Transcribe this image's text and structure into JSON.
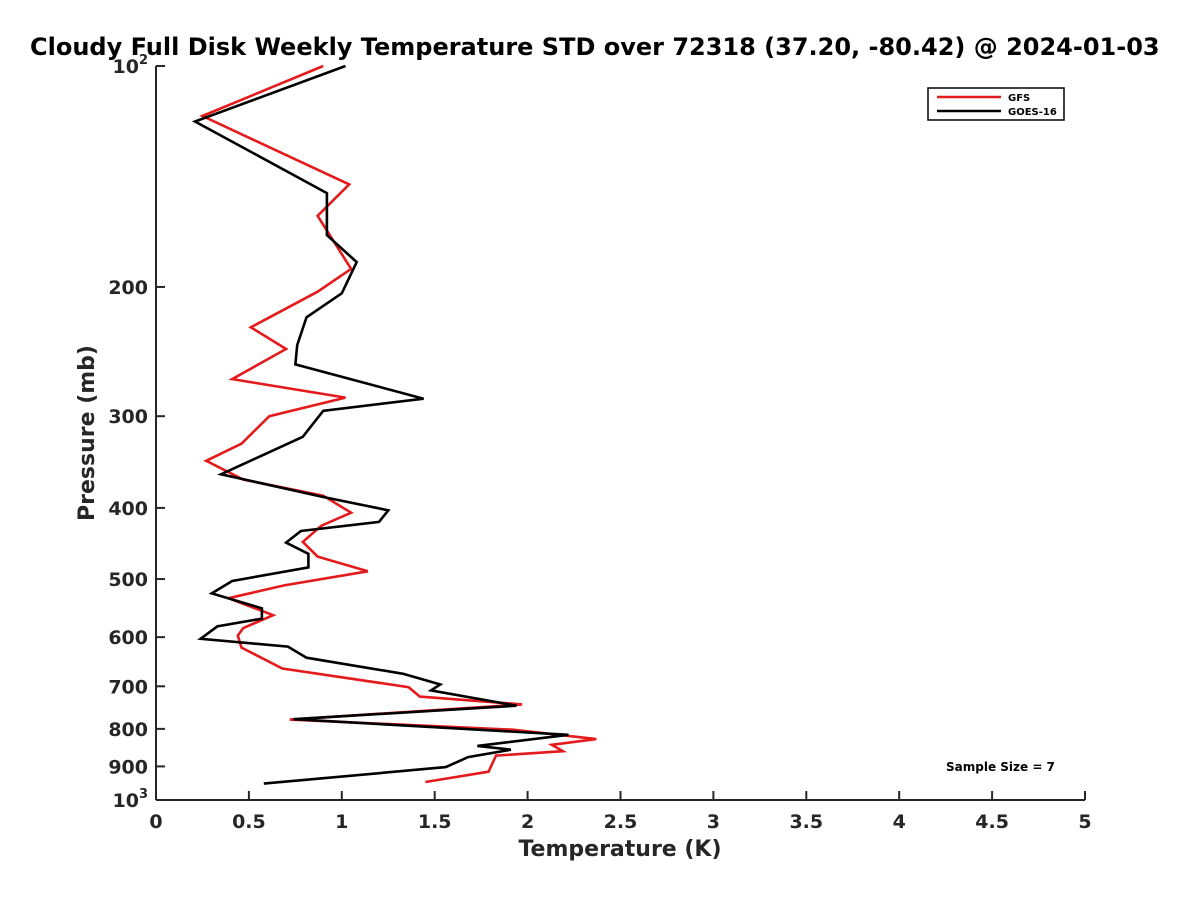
{
  "chart_data": {
    "type": "line",
    "title": "Cloudy Full Disk Weekly Temperature STD over 72318 (37.20, -80.42) @ 2024-01-03",
    "xlabel": "Temperature (K)",
    "ylabel": "Pressure (mb)",
    "xlim": [
      0,
      5
    ],
    "ylim": [
      1000,
      100
    ],
    "y_scale": "log",
    "y_reversed": true,
    "x_ticks": [
      0,
      0.5,
      1,
      1.5,
      2,
      2.5,
      3,
      3.5,
      4,
      4.5,
      5
    ],
    "x_tick_labels": [
      "0",
      "0.5",
      "1",
      "1.5",
      "2",
      "2.5",
      "3",
      "3.5",
      "4",
      "4.5",
      "5"
    ],
    "y_ticks": [
      100,
      200,
      300,
      400,
      500,
      600,
      700,
      800,
      900,
      1000
    ],
    "y_tick_labels": [
      {
        "base": "10",
        "exp": "2"
      },
      {
        "base": "200",
        "exp": ""
      },
      {
        "base": "300",
        "exp": ""
      },
      {
        "base": "400",
        "exp": ""
      },
      {
        "base": "500",
        "exp": ""
      },
      {
        "base": "600",
        "exp": ""
      },
      {
        "base": "700",
        "exp": ""
      },
      {
        "base": "800",
        "exp": ""
      },
      {
        "base": "900",
        "exp": ""
      },
      {
        "base": "10",
        "exp": "3"
      }
    ],
    "grid": false,
    "legend_position": "top-right",
    "annotation": "Sample Size = 7",
    "series": [
      {
        "name": "GFS",
        "color": "#e41a1c",
        "points": [
          [
            0.9,
            100
          ],
          [
            0.25,
            117
          ],
          [
            1.04,
            145
          ],
          [
            0.87,
            160
          ],
          [
            1.05,
            189
          ],
          [
            0.87,
            203
          ],
          [
            0.51,
            227
          ],
          [
            0.7,
            243
          ],
          [
            0.41,
            267
          ],
          [
            1.02,
            283
          ],
          [
            0.61,
            300
          ],
          [
            0.46,
            327
          ],
          [
            0.27,
            345
          ],
          [
            0.47,
            366
          ],
          [
            0.9,
            385
          ],
          [
            1.05,
            406
          ],
          [
            0.89,
            423
          ],
          [
            0.79,
            445
          ],
          [
            0.87,
            466
          ],
          [
            1.14,
            488
          ],
          [
            0.69,
            510
          ],
          [
            0.39,
            531
          ],
          [
            0.63,
            560
          ],
          [
            0.47,
            583
          ],
          [
            0.44,
            597
          ],
          [
            0.46,
            620
          ],
          [
            0.68,
            662
          ],
          [
            1.36,
            702
          ],
          [
            1.42,
            723
          ],
          [
            1.97,
            741
          ],
          [
            0.72,
            777
          ],
          [
            1.92,
            802
          ],
          [
            2.37,
            826
          ],
          [
            2.13,
            841
          ],
          [
            2.19,
            858
          ],
          [
            1.83,
            870
          ],
          [
            1.79,
            915
          ],
          [
            1.45,
            945
          ]
        ]
      },
      {
        "name": "GOES-16",
        "color": "#000000",
        "points": [
          [
            1.02,
            100
          ],
          [
            0.21,
            119
          ],
          [
            0.92,
            149
          ],
          [
            0.92,
            170
          ],
          [
            1.08,
            185
          ],
          [
            1.0,
            204
          ],
          [
            0.81,
            220
          ],
          [
            0.76,
            240
          ],
          [
            0.75,
            255
          ],
          [
            1.44,
            284
          ],
          [
            0.9,
            295
          ],
          [
            0.79,
            320
          ],
          [
            0.35,
            360
          ],
          [
            0.89,
            386
          ],
          [
            1.25,
            403
          ],
          [
            1.2,
            418
          ],
          [
            0.78,
            430
          ],
          [
            0.7,
            446
          ],
          [
            0.82,
            462
          ],
          [
            0.82,
            482
          ],
          [
            0.41,
            503
          ],
          [
            0.3,
            523
          ],
          [
            0.57,
            548
          ],
          [
            0.57,
            566
          ],
          [
            0.33,
            580
          ],
          [
            0.24,
            603
          ],
          [
            0.71,
            618
          ],
          [
            0.81,
            640
          ],
          [
            1.33,
            673
          ],
          [
            1.53,
            696
          ],
          [
            1.48,
            709
          ],
          [
            1.94,
            744
          ],
          [
            0.74,
            776
          ],
          [
            2.22,
            815
          ],
          [
            1.73,
            844
          ],
          [
            1.91,
            854
          ],
          [
            1.68,
            874
          ],
          [
            1.56,
            902
          ],
          [
            0.58,
            950
          ]
        ]
      }
    ]
  }
}
